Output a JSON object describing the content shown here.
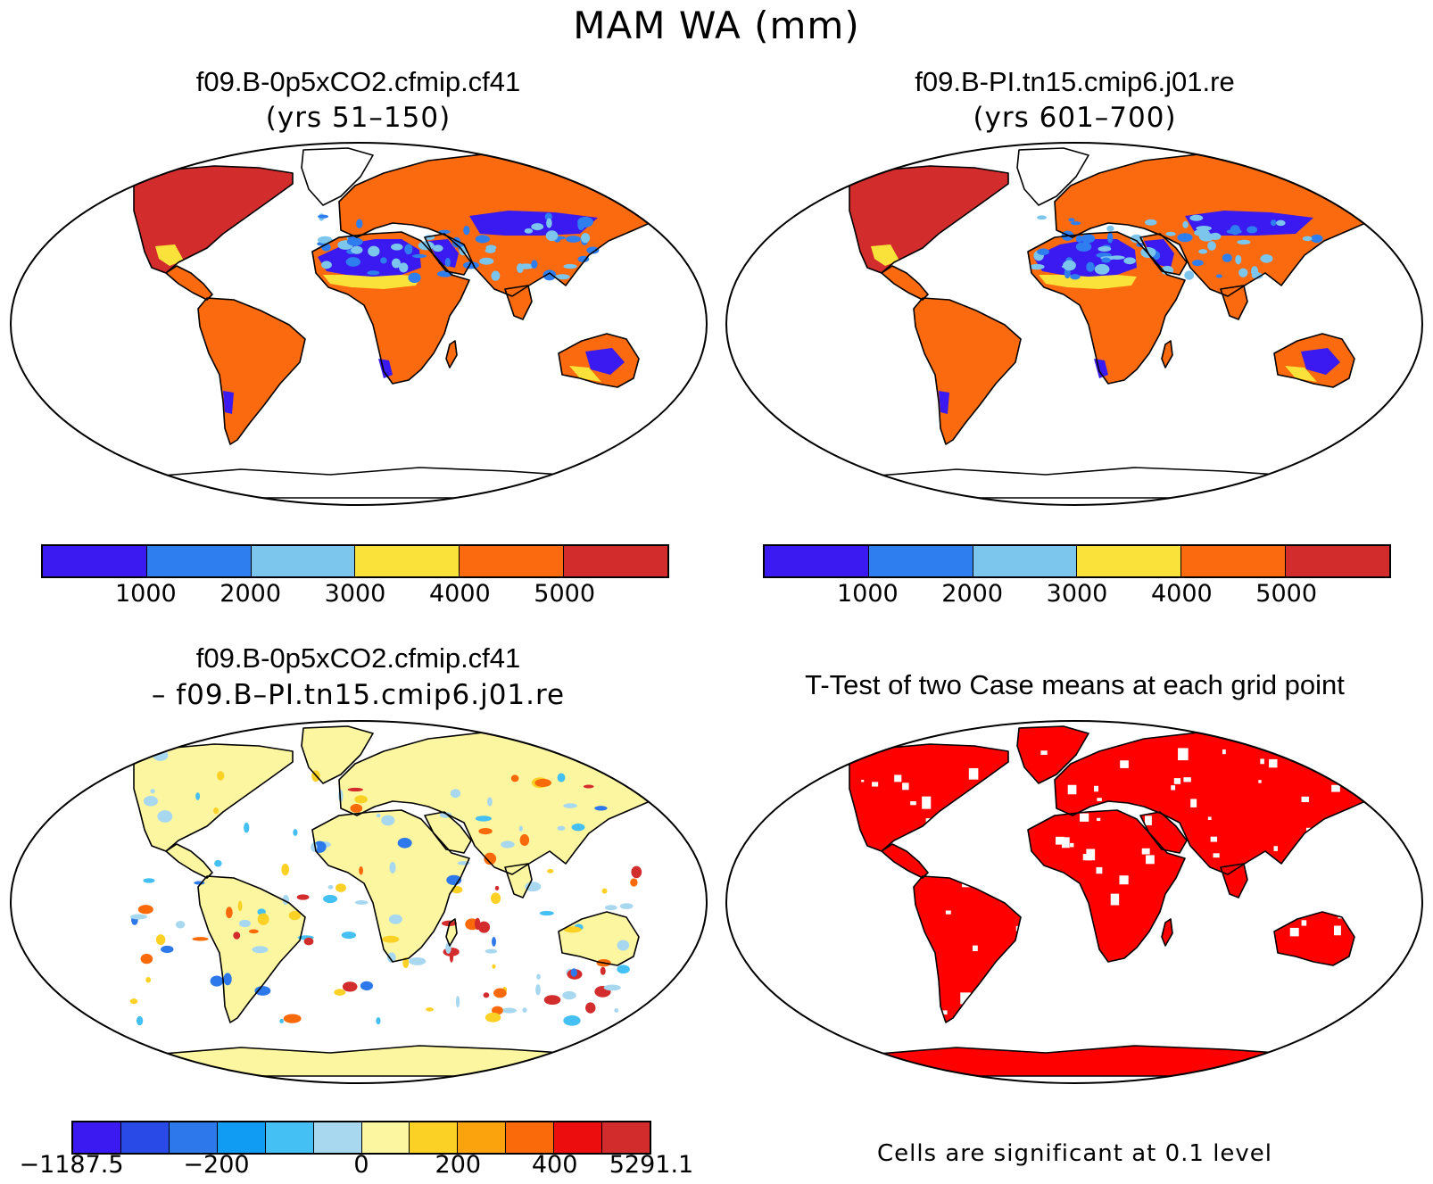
{
  "title": "MAM WA (mm)",
  "panels": [
    {
      "title": "f09.B-0p5xCO2.cfmip.cf41",
      "subtitle": "(yrs 51–150)"
    },
    {
      "title": "f09.B-PI.tn15.cmip6.j01.re",
      "subtitle": "(yrs 601–700)"
    },
    {
      "title": "f09.B-0p5xCO2.cfmip.cf41",
      "subtitle": "– f09.B–PI.tn15.cmip6.j01.re"
    },
    {
      "title": "T-Test of two Case means at each grid point",
      "subtitle": ""
    }
  ],
  "colorbar_abs": {
    "colors": [
      "#3a1af0",
      "#2f7ef0",
      "#7cc6ee",
      "#fbe23a",
      "#fb6a0e",
      "#d22c2c"
    ],
    "tick_labels": [
      "1000",
      "2000",
      "3000",
      "4000",
      "5000"
    ]
  },
  "colorbar_diff": {
    "colors": [
      "#3a1af0",
      "#2a4ae8",
      "#2d78ea",
      "#119cf3",
      "#44c0f4",
      "#a8d8f0",
      "#fdf6a0",
      "#fbd125",
      "#fba30d",
      "#fa6a0a",
      "#ec0e0e",
      "#d22c2c"
    ],
    "tick_labels": [
      "−1187.5",
      "−200",
      "0",
      "200",
      "400",
      "5291.1"
    ]
  },
  "footnote": "Cells are significant at 0.1 level",
  "map_colors": {
    "land_high": "#d22c2c",
    "land_mid": "#fb6a0e",
    "desert_low": "#3a1af0",
    "desert_mid": "#2f7ef0",
    "yellow": "#fbe23a",
    "diff_bg": "#fdf6a0",
    "sig": "#ff0000"
  }
}
